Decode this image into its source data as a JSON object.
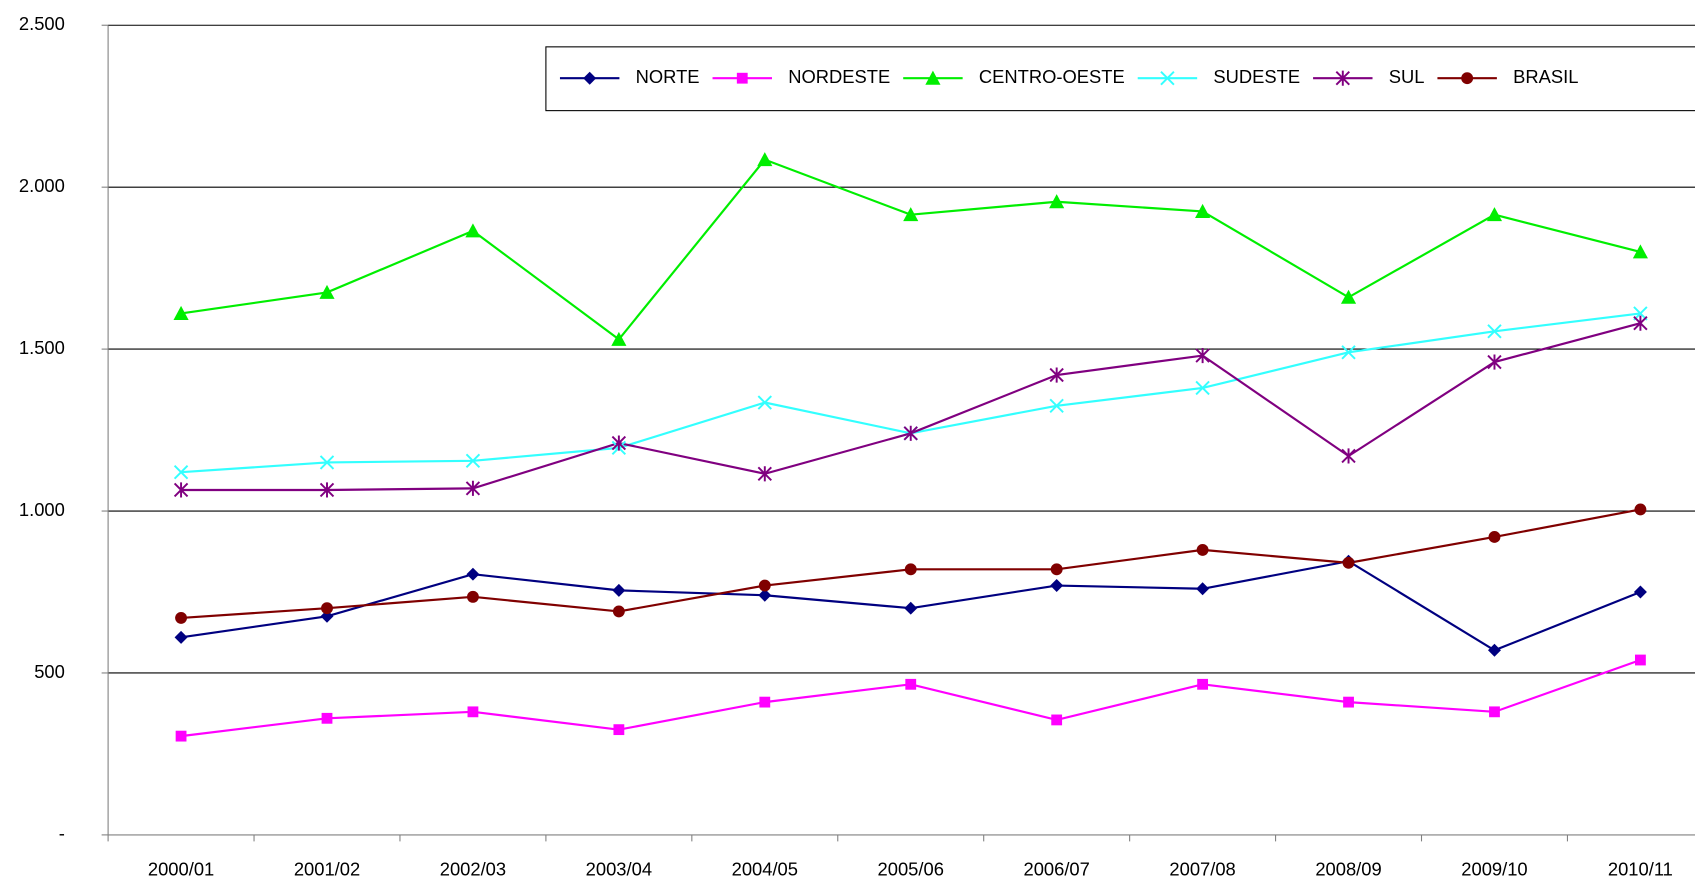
{
  "chart_data": {
    "type": "line",
    "categories": [
      "2000/01",
      "2001/02",
      "2002/03",
      "2003/04",
      "2004/05",
      "2005/06",
      "2006/07",
      "2007/08",
      "2008/09",
      "2009/10",
      "2010/11"
    ],
    "series": [
      {
        "name": "NORTE",
        "color": "#000080",
        "marker": "diamond",
        "values": [
          610,
          675,
          805,
          755,
          740,
          700,
          770,
          760,
          845,
          570,
          750
        ]
      },
      {
        "name": "NORDESTE",
        "color": "#ff00ff",
        "marker": "square",
        "values": [
          305,
          360,
          380,
          325,
          410,
          465,
          355,
          465,
          410,
          380,
          540
        ]
      },
      {
        "name": "CENTRO-OESTE",
        "color": "#00ee00",
        "marker": "triangle",
        "values": [
          1610,
          1675,
          1865,
          1530,
          2085,
          1915,
          1955,
          1925,
          1660,
          1915,
          1800
        ]
      },
      {
        "name": "SUDESTE",
        "color": "#33ffff",
        "marker": "x",
        "values": [
          1120,
          1150,
          1155,
          1195,
          1335,
          1240,
          1325,
          1380,
          1490,
          1555,
          1610
        ]
      },
      {
        "name": "SUL",
        "color": "#800080",
        "marker": "asterisk",
        "values": [
          1065,
          1065,
          1070,
          1210,
          1115,
          1240,
          1420,
          1480,
          1170,
          1460,
          1580
        ]
      },
      {
        "name": "BRASIL",
        "color": "#800000",
        "marker": "circle",
        "values": [
          670,
          700,
          735,
          690,
          770,
          820,
          820,
          880,
          840,
          920,
          1005
        ]
      }
    ],
    "ylim": [
      0,
      2500
    ],
    "yticks": [
      {
        "value": 0,
        "label": "-"
      },
      500,
      {
        "value": 1000,
        "label": "1.000"
      },
      {
        "value": 1500,
        "label": "1.500"
      },
      {
        "value": 2000,
        "label": "2.000"
      },
      {
        "value": 2500,
        "label": "2.500"
      }
    ],
    "grid": true,
    "legend": "top-right"
  }
}
